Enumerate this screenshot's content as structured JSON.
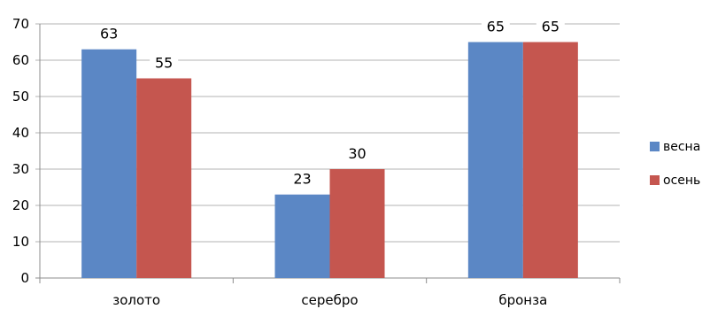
{
  "chart_data": {
    "type": "bar",
    "title": "",
    "xlabel": "",
    "ylabel": "",
    "categories": [
      "золото",
      "серебро",
      "бронза"
    ],
    "series": [
      {
        "name": "весна",
        "values": [
          63,
          23,
          65
        ],
        "color": "#5B87C5"
      },
      {
        "name": "осень",
        "values": [
          55,
          30,
          65
        ],
        "color": "#C5564F"
      }
    ],
    "ylim": [
      0,
      70
    ],
    "yticks": [
      "0",
      "10",
      "20",
      "30",
      "40",
      "50",
      "60",
      "70"
    ],
    "grid": true,
    "legend_position": "right"
  }
}
